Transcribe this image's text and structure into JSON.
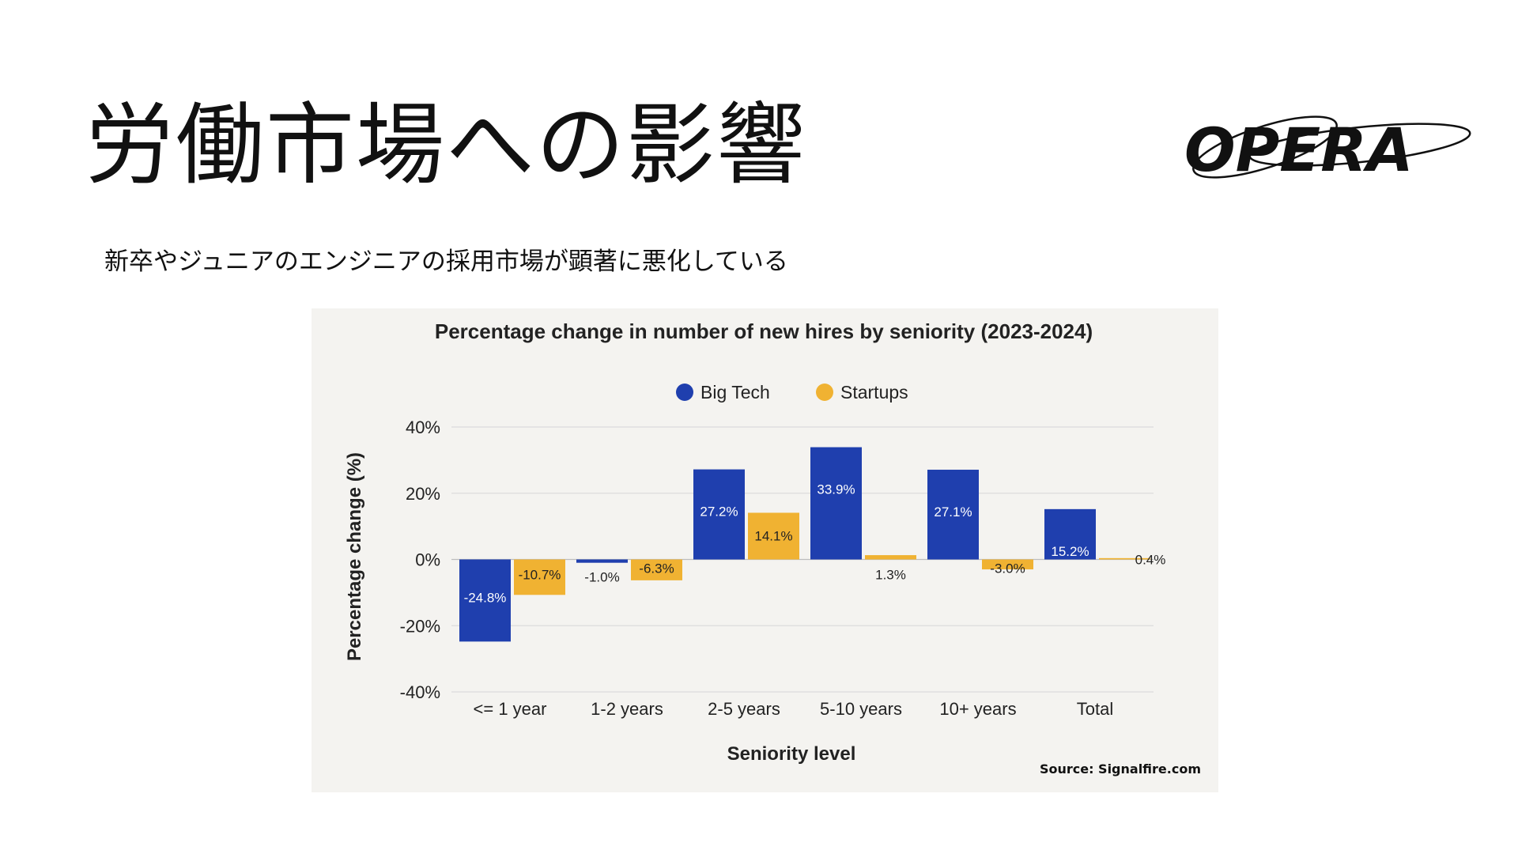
{
  "slide": {
    "title": "労働市場への影響",
    "subtitle": "新卒やジュニアのエンジニアの採用市場が顕著に悪化している",
    "logo_text": "OPERA"
  },
  "chart_data": {
    "type": "bar",
    "title": "Percentage change in number of new hires by seniority (2023-2024)",
    "xlabel": "Seniority level",
    "ylabel": "Percentage change (%)",
    "categories": [
      "<= 1 year",
      "1-2 years",
      "2-5 years",
      "5-10 years",
      "10+ years",
      "Total"
    ],
    "series": [
      {
        "name": "Big Tech",
        "color": "#1f3fae",
        "values": [
          -24.8,
          -1.0,
          27.2,
          33.9,
          27.1,
          15.2
        ],
        "labels": [
          "-24.8%",
          "-1.0%",
          "27.2%",
          "33.9%",
          "27.1%",
          "15.2%"
        ]
      },
      {
        "name": "Startups",
        "color": "#f0b232",
        "values": [
          -10.7,
          -6.3,
          14.1,
          1.3,
          -3.0,
          0.4
        ],
        "labels": [
          "-10.7%",
          "-6.3%",
          "14.1%",
          "1.3%",
          "-3.0%",
          "0.4%"
        ]
      }
    ],
    "yticks": [
      40,
      20,
      0,
      -20,
      -40
    ],
    "ytick_labels": [
      "40%",
      "20%",
      "0%",
      "-20%",
      "-40%"
    ],
    "ylim": [
      -40,
      40
    ],
    "grid": true,
    "legend": "top-center",
    "source": "Source: Signalfire.com"
  }
}
